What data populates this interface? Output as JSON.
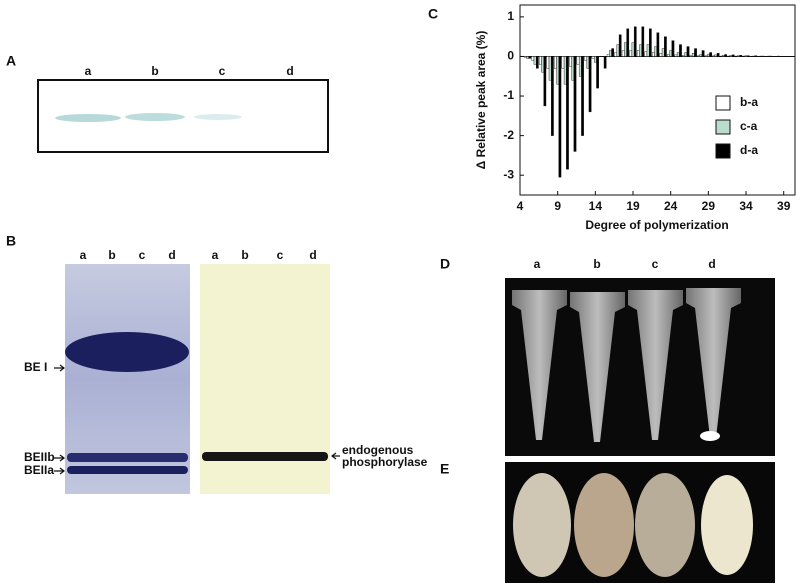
{
  "panels": {
    "A": {
      "letter": "A",
      "lanes": [
        "a",
        "b",
        "c",
        "d"
      ]
    },
    "B": {
      "letter": "B",
      "left_lanes": [
        "a",
        "b",
        "c",
        "d"
      ],
      "right_lanes": [
        "a",
        "b",
        "c",
        "d"
      ],
      "bands": [
        "BE I",
        "BEIIb",
        "BEIIa"
      ],
      "right_label": [
        "endogenous",
        "phosphorylase"
      ]
    },
    "C": {
      "letter": "C"
    },
    "D": {
      "letter": "D",
      "lanes": [
        "a",
        "b",
        "c",
        "d"
      ]
    },
    "E": {
      "letter": "E"
    }
  },
  "chart_data": {
    "type": "bar",
    "x_label": "Degree of polymerization",
    "y_label": "Δ Relative peak area (%)",
    "x": [
      5,
      6,
      7,
      8,
      9,
      10,
      11,
      12,
      13,
      14,
      15,
      16,
      17,
      18,
      19,
      20,
      21,
      22,
      23,
      24,
      25,
      26,
      27,
      28,
      29,
      30,
      31,
      32,
      33,
      34,
      35,
      36,
      37,
      38,
      39,
      40
    ],
    "series": [
      {
        "name": "b-a",
        "color": "#ffffff",
        "values": [
          -0.02,
          -0.1,
          -0.2,
          -0.3,
          -0.3,
          -0.3,
          -0.25,
          -0.2,
          -0.1,
          -0.05,
          0,
          0.05,
          0.1,
          0.15,
          0.15,
          0.15,
          0.12,
          0.1,
          0.08,
          0.05,
          0.04,
          0.03,
          0.03,
          0.02,
          0.02,
          0.02,
          0.01,
          0.01,
          0.01,
          0.01,
          0,
          0,
          0,
          0,
          0,
          0
        ]
      },
      {
        "name": "c-a",
        "color": "#b9dccb",
        "values": [
          -0.05,
          -0.2,
          -0.4,
          -0.6,
          -0.7,
          -0.7,
          -0.6,
          -0.5,
          -0.3,
          -0.15,
          0,
          0.15,
          0.3,
          0.35,
          0.35,
          0.3,
          0.3,
          0.25,
          0.2,
          0.15,
          0.1,
          0.1,
          0.08,
          0.05,
          0.05,
          0.04,
          0.03,
          0.03,
          0.02,
          0.02,
          0.01,
          0.01,
          0.01,
          0,
          0,
          0
        ]
      },
      {
        "name": "d-a",
        "color": "#000000",
        "values": [
          -0.05,
          -0.3,
          -1.25,
          -2.0,
          -3.05,
          -2.85,
          -2.4,
          -2.0,
          -1.4,
          -0.8,
          -0.3,
          0.2,
          0.55,
          0.7,
          0.75,
          0.75,
          0.7,
          0.6,
          0.5,
          0.4,
          0.3,
          0.25,
          0.2,
          0.15,
          0.1,
          0.08,
          0.05,
          0.04,
          0.03,
          0.02,
          0.02,
          0.01,
          0.01,
          0.01,
          0,
          0
        ]
      }
    ],
    "xlim": [
      4,
      40.5
    ],
    "xticks": [
      4,
      9,
      14,
      19,
      24,
      29,
      34,
      39
    ],
    "ylim": [
      -3.5,
      1.3
    ],
    "yticks": [
      -3,
      -2,
      -1,
      0,
      1
    ]
  }
}
